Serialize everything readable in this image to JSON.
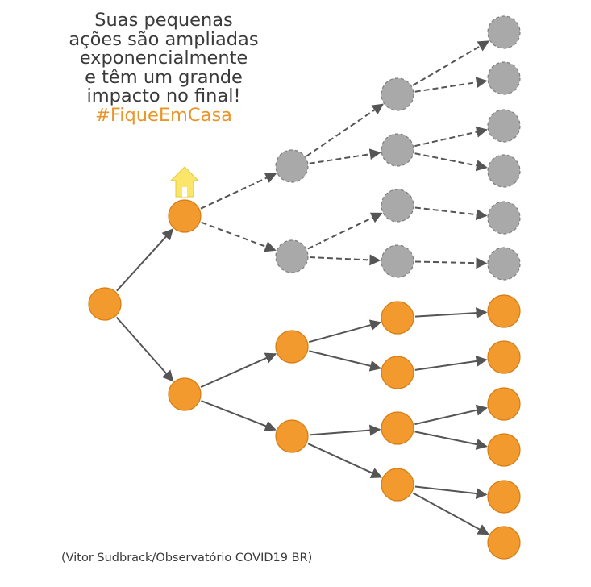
{
  "caption": {
    "lines": [
      "Suas pequenas",
      "ações são ampliadas",
      "exponencialmente",
      "e têm um grande",
      "impacto no final!"
    ],
    "hashtag": "#FiqueEmCasa"
  },
  "credit": "(Vitor Sudbrack/Observatório COVID19 BR)",
  "colors": {
    "active_node": "#f29a2e",
    "active_node_border": "#d67d12",
    "inactive_node": "#a9a9a9",
    "inactive_node_border": "#7f7f7f",
    "edge": "#555555",
    "house_icon": "#fbe66a",
    "text": "#3a3a3a",
    "hashtag": "#e8962a"
  },
  "icons": {
    "stay_home": "house-icon"
  }
}
